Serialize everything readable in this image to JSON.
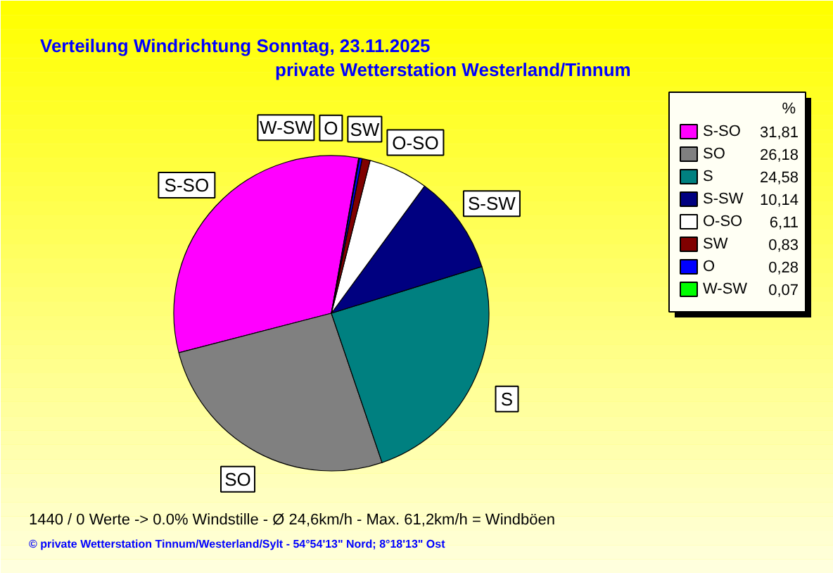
{
  "chart_data": {
    "type": "pie",
    "title": "Verteilung Windrichtung   Sonntag, 23.11.2025",
    "subtitle": "private Wetterstation Westerland/Tinnum",
    "categories": [
      "S-SO",
      "SO",
      "S",
      "S-SW",
      "O-SO",
      "SW",
      "O",
      "W-SW"
    ],
    "values": [
      31.81,
      26.18,
      24.58,
      10.14,
      6.11,
      0.83,
      0.28,
      0.07
    ],
    "value_labels": [
      "31,81",
      "26,18",
      "24,58",
      "10,14",
      "6,11",
      "0,83",
      "0,28",
      "0,07"
    ],
    "colors": [
      "#ff00ff",
      "#808080",
      "#008080",
      "#000080",
      "#ffffff",
      "#800000",
      "#0000ff",
      "#00ff00"
    ],
    "legend": "right",
    "legend_title": "%",
    "annotations": [
      "1440 / 0 Werte  -> 0.0% Windstille   -   Ø 24,6km/h  -  Max. 61,2km/h = Windböen",
      "© private Wetterstation Tinnum/Westerland/Sylt  -  54°54'13\" Nord; 8°18'13\" Ost"
    ]
  }
}
